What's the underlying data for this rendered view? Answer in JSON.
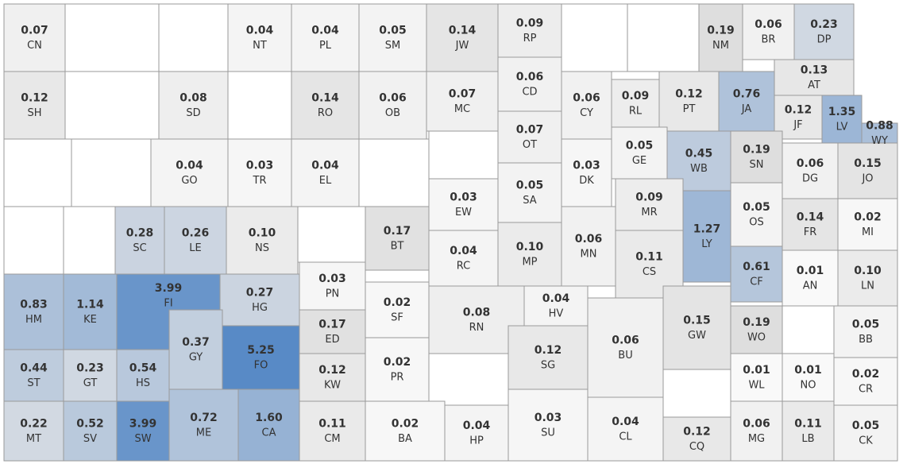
{
  "counties": [
    {
      "code": "CN",
      "value": 0.07
    },
    {
      "code": "NT",
      "value": 0.04
    },
    {
      "code": "PL",
      "value": 0.04
    },
    {
      "code": "SM",
      "value": 0.05
    },
    {
      "code": "JW",
      "value": 0.14
    },
    {
      "code": "RP",
      "value": 0.09
    },
    {
      "code": "NM",
      "value": 0.19
    },
    {
      "code": "BR",
      "value": 0.06
    },
    {
      "code": "DP",
      "value": 0.23
    },
    {
      "code": "SH",
      "value": 0.12
    },
    {
      "code": "SD",
      "value": 0.08
    },
    {
      "code": "RO",
      "value": 0.14
    },
    {
      "code": "OB",
      "value": 0.06
    },
    {
      "code": "MC",
      "value": 0.07
    },
    {
      "code": "CD",
      "value": 0.06
    },
    {
      "code": "CY",
      "value": 0.06
    },
    {
      "code": "RL",
      "value": 0.09
    },
    {
      "code": "PT",
      "value": 0.12
    },
    {
      "code": "JA",
      "value": 0.76
    },
    {
      "code": "AT",
      "value": 0.13
    },
    {
      "code": "JF",
      "value": 0.12
    },
    {
      "code": "LV",
      "value": 1.35
    },
    {
      "code": "WY",
      "value": 0.88
    },
    {
      "code": "GO",
      "value": 0.04
    },
    {
      "code": "TR",
      "value": 0.03
    },
    {
      "code": "EL",
      "value": 0.04
    },
    {
      "code": "OT",
      "value": 0.07
    },
    {
      "code": "DK",
      "value": 0.03
    },
    {
      "code": "GE",
      "value": 0.05
    },
    {
      "code": "WB",
      "value": 0.45
    },
    {
      "code": "SN",
      "value": 0.19
    },
    {
      "code": "DG",
      "value": 0.06
    },
    {
      "code": "JO",
      "value": 0.15
    },
    {
      "code": "SC",
      "value": 0.28
    },
    {
      "code": "LE",
      "value": 0.26
    },
    {
      "code": "NS",
      "value": 0.1,
      "value_label": "0.10"
    },
    {
      "code": "BT",
      "value": 0.17
    },
    {
      "code": "EW",
      "value": 0.03
    },
    {
      "code": "SA",
      "value": 0.05
    },
    {
      "code": "MR",
      "value": 0.09
    },
    {
      "code": "LY",
      "value": 1.27
    },
    {
      "code": "OS",
      "value": 0.05
    },
    {
      "code": "FR",
      "value": 0.14
    },
    {
      "code": "MI",
      "value": 0.02
    },
    {
      "code": "RC",
      "value": 0.04
    },
    {
      "code": "MP",
      "value": 0.1,
      "value_label": "0.10"
    },
    {
      "code": "MN",
      "value": 0.06
    },
    {
      "code": "CS",
      "value": 0.11
    },
    {
      "code": "CF",
      "value": 0.61
    },
    {
      "code": "AN",
      "value": 0.01
    },
    {
      "code": "LN",
      "value": 0.1,
      "value_label": "0.10"
    },
    {
      "code": "HM",
      "value": 0.83
    },
    {
      "code": "KE",
      "value": 1.14
    },
    {
      "code": "FI",
      "value": 3.99
    },
    {
      "code": "HG",
      "value": 0.27
    },
    {
      "code": "PN",
      "value": 0.03
    },
    {
      "code": "SF",
      "value": 0.02
    },
    {
      "code": "ED",
      "value": 0.17
    },
    {
      "code": "RN",
      "value": 0.08
    },
    {
      "code": "HV",
      "value": 0.04
    },
    {
      "code": "BU",
      "value": 0.06
    },
    {
      "code": "GW",
      "value": 0.15
    },
    {
      "code": "WO",
      "value": 0.19
    },
    {
      "code": "BB",
      "value": 0.05
    },
    {
      "code": "GY",
      "value": 0.37
    },
    {
      "code": "FO",
      "value": 5.25
    },
    {
      "code": "SG",
      "value": 0.12
    },
    {
      "code": "ST",
      "value": 0.44
    },
    {
      "code": "GT",
      "value": 0.23
    },
    {
      "code": "HS",
      "value": 0.54
    },
    {
      "code": "KW",
      "value": 0.12
    },
    {
      "code": "PR",
      "value": 0.02
    },
    {
      "code": "WL",
      "value": 0.01
    },
    {
      "code": "NO",
      "value": 0.01
    },
    {
      "code": "CR",
      "value": 0.02
    },
    {
      "code": "MT",
      "value": 0.22
    },
    {
      "code": "SV",
      "value": 0.52
    },
    {
      "code": "SW",
      "value": 3.99
    },
    {
      "code": "ME",
      "value": 0.72
    },
    {
      "code": "CA",
      "value": 1.6,
      "value_label": "1.60"
    },
    {
      "code": "CM",
      "value": 0.11
    },
    {
      "code": "BA",
      "value": 0.02
    },
    {
      "code": "HP",
      "value": 0.04
    },
    {
      "code": "SU",
      "value": 0.03
    },
    {
      "code": "CL",
      "value": 0.04
    },
    {
      "code": "CQ",
      "value": 0.12
    },
    {
      "code": "MG",
      "value": 0.06
    },
    {
      "code": "LB",
      "value": 0.11
    },
    {
      "code": "CK",
      "value": 0.05
    }
  ]
}
